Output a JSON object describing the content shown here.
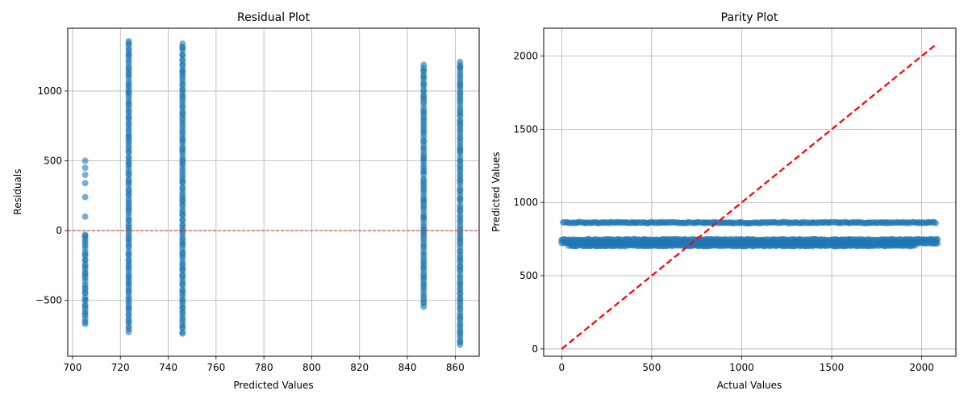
{
  "chart_data": [
    {
      "type": "scatter",
      "title": "Residual Plot",
      "xlabel": "Predicted Values",
      "ylabel": "Residuals",
      "xlim": [
        698,
        870
      ],
      "ylim": [
        -900,
        1450
      ],
      "xticks": [
        700,
        720,
        740,
        760,
        780,
        800,
        820,
        840,
        860
      ],
      "yticks": [
        -500,
        0,
        500,
        1000
      ],
      "grid": true,
      "marker_color": "#1f77b4",
      "marker_alpha": 0.6,
      "reference_line": {
        "y": 0,
        "color": "#d62728",
        "style": "dashed"
      },
      "series": [
        {
          "columns": [
            {
              "x": 705.3,
              "y_min": -670,
              "y_max": -40,
              "extra_y": [
                -30,
                100,
                240,
                340,
                400,
                450,
                500
              ]
            },
            {
              "x": 723.5,
              "y_min": -720,
              "y_max": 1360
            },
            {
              "x": 746.0,
              "y_min": -740,
              "y_max": 1340
            },
            {
              "x": 846.8,
              "y_min": -540,
              "y_max": 1190
            },
            {
              "x": 862.0,
              "y_min": -820,
              "y_max": 1210
            }
          ]
        }
      ]
    },
    {
      "type": "scatter",
      "title": "Parity Plot",
      "xlabel": "Actual Values",
      "ylabel": "Predicted Values",
      "xlim": [
        -100,
        2190
      ],
      "ylim": [
        -50,
        2190
      ],
      "xticks": [
        0,
        500,
        1000,
        1500,
        2000
      ],
      "yticks": [
        0,
        500,
        1000,
        1500,
        2000
      ],
      "grid": true,
      "marker_color": "#1f77b4",
      "marker_alpha": 0.6,
      "reference_line": {
        "from": [
          0,
          0
        ],
        "to": [
          2080,
          2080
        ],
        "color": "#ff0000",
        "style": "dashed"
      },
      "series": [
        {
          "bands": [
            {
              "y": 862,
              "x_min": 10,
              "x_max": 2080
            },
            {
              "y": 746,
              "x_min": 0,
              "x_max": 2090
            },
            {
              "y": 723,
              "x_min": 0,
              "x_max": 2090
            },
            {
              "y": 705,
              "x_min": 40,
              "x_max": 1960
            }
          ]
        }
      ]
    }
  ]
}
